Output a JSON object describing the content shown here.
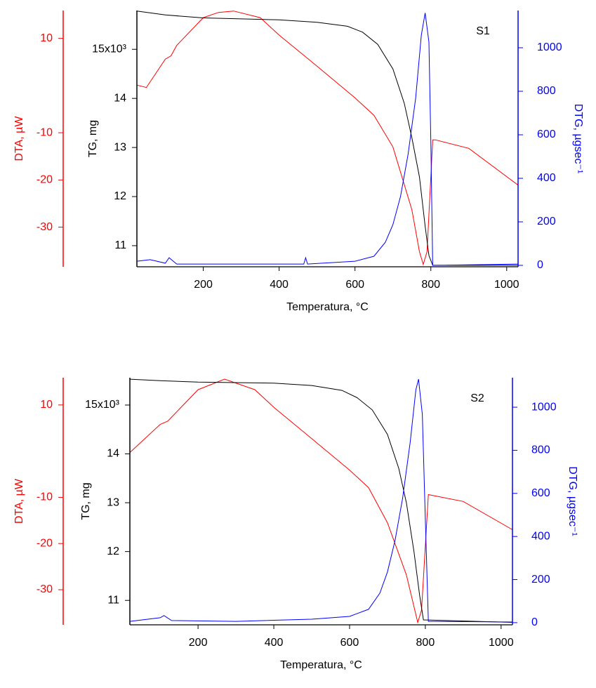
{
  "chart_data": [
    {
      "type": "line",
      "title": "S1",
      "xlabel": "Temperatura, °C",
      "xlim": [
        25,
        1030
      ],
      "xticks": [
        200,
        400,
        600,
        800,
        1000
      ],
      "series": [
        {
          "axis_label": "DTA, µW",
          "color": "#ff0000",
          "ylim": [
            -38.4,
            15.9
          ],
          "yticks": [
            -30,
            -20,
            -10,
            10
          ],
          "x": [
            25,
            50,
            100,
            115,
            130,
            200,
            240,
            280,
            350,
            400,
            500,
            600,
            650,
            700,
            750,
            770,
            780,
            790,
            805,
            812,
            900,
            1030
          ],
          "values": [
            0.1,
            -0.4,
            5.6,
            6.3,
            8.5,
            14.4,
            15.5,
            15.8,
            14.4,
            10.7,
            4.1,
            -2.6,
            -6.3,
            -13,
            -26.3,
            -35.2,
            -37.9,
            -35.2,
            -11.5,
            -11.5,
            -13.3,
            -21.1
          ]
        },
        {
          "axis_label": "TG, mg",
          "color": "#000000",
          "ylim": [
            10.57,
            15.79
          ],
          "yticks": [
            11,
            12,
            13,
            14,
            {
              "value": 15,
              "label": "15x10³"
            }
          ],
          "x": [
            25,
            100,
            200,
            300,
            400,
            500,
            580,
            620,
            660,
            700,
            730,
            750,
            770,
            785,
            795,
            805,
            1030
          ],
          "values": [
            15.78,
            15.7,
            15.64,
            15.62,
            15.6,
            15.55,
            15.47,
            15.35,
            15.1,
            14.6,
            13.9,
            13.2,
            12.4,
            11.4,
            10.8,
            10.6,
            10.6
          ]
        },
        {
          "axis_label": "DTG, µgsec⁻¹",
          "color": "#0000ff",
          "ylim": [
            -6.5,
            1171
          ],
          "yticks": [
            0,
            200,
            400,
            600,
            800,
            1000
          ],
          "x": [
            25,
            60,
            100,
            110,
            130,
            200,
            400,
            465,
            470,
            475,
            600,
            650,
            680,
            700,
            720,
            740,
            760,
            775,
            785,
            795,
            800,
            805,
            1030
          ],
          "values": [
            19,
            26,
            10,
            35,
            6,
            6,
            6,
            6,
            35,
            6,
            19,
            42,
            106,
            187,
            316,
            510,
            768,
            1058,
            1160,
            1026,
            574,
            0,
            6
          ]
        }
      ]
    },
    {
      "type": "line",
      "title": "S2",
      "xlabel": "Temperatura, °C",
      "xlim": [
        20,
        1030
      ],
      "xticks": [
        200,
        400,
        600,
        800,
        1000
      ],
      "series": [
        {
          "axis_label": "DTA, µW",
          "color": "#ff0000",
          "ylim": [
            -37.6,
            15.9
          ],
          "yticks": [
            -30,
            -20,
            -10,
            10
          ],
          "x": [
            20,
            100,
            120,
            200,
            270,
            350,
            400,
            500,
            600,
            650,
            700,
            750,
            780,
            790,
            808,
            900,
            1030
          ],
          "values": [
            -0.3,
            5.8,
            6.5,
            13.3,
            15.6,
            13.3,
            9.5,
            2.7,
            -4.1,
            -7.9,
            -15.5,
            -26.8,
            -37.1,
            -34.4,
            -9.4,
            -10.9,
            -17
          ]
        },
        {
          "axis_label": "TG, mg",
          "color": "#000000",
          "ylim": [
            10.5,
            15.56
          ],
          "yticks": [
            11,
            12,
            13,
            14,
            {
              "value": 15,
              "label": "15x10³"
            }
          ],
          "x": [
            20,
            100,
            200,
            300,
            400,
            500,
            580,
            620,
            660,
            700,
            730,
            750,
            770,
            785,
            795,
            1030
          ],
          "values": [
            15.53,
            15.5,
            15.47,
            15.46,
            15.45,
            15.4,
            15.3,
            15.15,
            14.9,
            14.4,
            13.7,
            13.0,
            12.0,
            11.1,
            10.6,
            10.55
          ]
        },
        {
          "axis_label": "DTG, µgsec⁻¹",
          "color": "#0000ff",
          "ylim": [
            -10,
            1137
          ],
          "yticks": [
            0,
            200,
            400,
            600,
            800,
            1000
          ],
          "x": [
            20,
            100,
            110,
            130,
            300,
            500,
            600,
            650,
            680,
            700,
            720,
            740,
            760,
            775,
            782,
            792,
            800,
            808,
            1030
          ],
          "values": [
            6,
            23,
            33,
            10,
            6,
            16,
            29,
            62,
            137,
            235,
            381,
            577,
            837,
            1081,
            1130,
            967,
            479,
            6,
            3
          ]
        }
      ]
    }
  ]
}
